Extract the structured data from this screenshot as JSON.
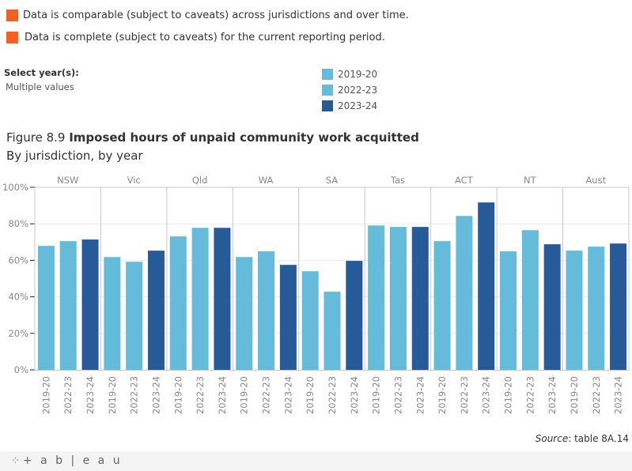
{
  "caveats": [
    {
      "icon": "caveat-square-icon",
      "color": "#f26122",
      "text": "Data is comparable (subject to caveats) across jurisdictions and over time."
    },
    {
      "icon": "caveat-square-icon",
      "color": "#f26122",
      "text": "Data is complete (subject to caveats) for the current reporting period."
    }
  ],
  "filter": {
    "label": "Select year(s):",
    "value": "Multiple values"
  },
  "legend": [
    {
      "label": "2019-20",
      "color": "#64bbda"
    },
    {
      "label": "2022-23",
      "color": "#64bbda"
    },
    {
      "label": "2023-24",
      "color": "#275a99"
    }
  ],
  "title": {
    "prefix": "Figure 8.9 ",
    "main": "Imposed hours of unpaid community work acquitted"
  },
  "subtitle": "By jurisdiction, by year",
  "source": {
    "label": "Source",
    "text": ": table 8A.14"
  },
  "footer": {
    "logo_text": "+ a b | e a u",
    "logo_icon": "tableau-logo-icon"
  },
  "chart_data": {
    "type": "bar",
    "title": "Imposed hours of unpaid community work acquitted",
    "subtitle": "By jurisdiction, by year",
    "xlabel": "",
    "ylabel": "",
    "ylim": [
      0,
      100
    ],
    "y_ticks": [
      "0%",
      "20%",
      "40%",
      "60%",
      "80%",
      "100%"
    ],
    "y_tick_values": [
      0,
      20,
      40,
      60,
      80,
      100
    ],
    "grid": true,
    "legend_position": "top-right",
    "categories": [
      "NSW",
      "Vic",
      "Qld",
      "WA",
      "SA",
      "Tas",
      "ACT",
      "NT",
      "Aust"
    ],
    "series": [
      {
        "name": "2019-20",
        "color": "#64bbda",
        "values": [
          67.9,
          61.8,
          73.1,
          61.8,
          54.0,
          79.1,
          70.5,
          64.9,
          65.3
        ]
      },
      {
        "name": "2022-23",
        "color": "#64bbda",
        "values": [
          70.5,
          59.2,
          77.8,
          64.9,
          42.8,
          78.3,
          84.3,
          76.5,
          67.5
        ]
      },
      {
        "name": "2023-24",
        "color": "#275a99",
        "values": [
          71.4,
          65.3,
          77.8,
          57.5,
          59.7,
          78.3,
          91.7,
          68.8,
          69.2
        ]
      }
    ]
  }
}
